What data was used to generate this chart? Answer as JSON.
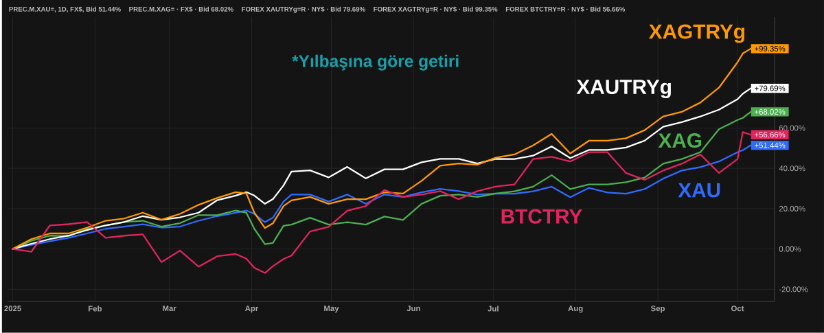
{
  "chart_data": {
    "type": "line",
    "title": "*Yılbaşına göre getiri",
    "annotations": [
      "PREC.M.XAU=, 1D, FX$, Bid 51.44%",
      "PREC.M.XAG= · FX$ · Bid 68.02%",
      "FOREX XAUTRYg=R · NY$ · Bid 79.69%",
      "FOREX XAGTRYg=R · NY$ · Bid 99.35%",
      "FOREX BTCTRY=R · NY$ · Bid 56.66%"
    ],
    "x": [
      "2025-01-01",
      "2025-01-08",
      "2025-01-15",
      "2025-01-22",
      "2025-01-29",
      "2025-02-05",
      "2025-02-12",
      "2025-02-19",
      "2025-02-26",
      "2025-03-05",
      "2025-03-12",
      "2025-03-19",
      "2025-03-26",
      "2025-03-30",
      "2025-04-02",
      "2025-04-06",
      "2025-04-09",
      "2025-04-13",
      "2025-04-16",
      "2025-04-23",
      "2025-04-30",
      "2025-05-07",
      "2025-05-14",
      "2025-05-21",
      "2025-05-28",
      "2025-06-04",
      "2025-06-11",
      "2025-06-18",
      "2025-06-25",
      "2025-07-02",
      "2025-07-09",
      "2025-07-16",
      "2025-07-23",
      "2025-07-30",
      "2025-08-06",
      "2025-08-13",
      "2025-08-20",
      "2025-08-27",
      "2025-09-03",
      "2025-09-10",
      "2025-09-17",
      "2025-09-24",
      "2025-10-01",
      "2025-10-03",
      "2025-10-06"
    ],
    "series": [
      {
        "name": "XAU",
        "color": "#2f6bff",
        "values": [
          0,
          2,
          3.8,
          5.5,
          7.7,
          10,
          11.1,
          12.3,
          10.6,
          11.1,
          14,
          16.3,
          18,
          19.1,
          17.4,
          13.3,
          15.5,
          23.5,
          27,
          27,
          23.5,
          27,
          22.4,
          27,
          25.8,
          28.1,
          29.8,
          28.7,
          27,
          27.5,
          27.4,
          28.6,
          30.9,
          25.7,
          30.3,
          28,
          27.4,
          29.7,
          34.9,
          38.9,
          40.6,
          43.4,
          48,
          49,
          51.44
        ],
        "value_labels": [
          null,
          null,
          null,
          null,
          null,
          null,
          null,
          null,
          null,
          null,
          null,
          null,
          null,
          null,
          null,
          null,
          null,
          null,
          null,
          null,
          null,
          null,
          null,
          null,
          null,
          null,
          null,
          null,
          null,
          null,
          null,
          null,
          null,
          null,
          null,
          null,
          null,
          null,
          null,
          null,
          null,
          null,
          null,
          null,
          "+51.44%"
        ]
      },
      {
        "name": "XAG",
        "color": "#4caf50",
        "values": [
          0,
          4.1,
          6.6,
          6.4,
          10,
          11.7,
          13.4,
          14,
          11.1,
          12.8,
          16.8,
          16.8,
          19.1,
          18,
          10,
          2.4,
          3,
          11.5,
          12.1,
          15.5,
          12.1,
          13.3,
          12.1,
          16.1,
          14.4,
          22.4,
          26.4,
          27,
          25.8,
          27.5,
          28.6,
          30.9,
          36.6,
          29.7,
          32,
          32,
          33.1,
          35.4,
          42.3,
          44.6,
          48,
          59.4,
          64,
          65,
          68.02
        ],
        "value_labels": [
          null,
          null,
          null,
          null,
          null,
          null,
          null,
          null,
          null,
          null,
          null,
          null,
          null,
          null,
          null,
          null,
          null,
          null,
          null,
          null,
          null,
          null,
          null,
          null,
          null,
          null,
          null,
          null,
          null,
          null,
          null,
          null,
          null,
          null,
          null,
          null,
          null,
          null,
          null,
          null,
          null,
          null,
          null,
          null,
          "+68.02%"
        ]
      },
      {
        "name": "XAUTRYg",
        "color": "#ffffff",
        "values": [
          0,
          2.6,
          4.9,
          6.6,
          9.4,
          11.7,
          13.4,
          16.3,
          14.5,
          15.7,
          18,
          24.2,
          26.5,
          28.2,
          26.5,
          22.4,
          24.7,
          31.5,
          38.4,
          39,
          35.5,
          40.7,
          35,
          39.5,
          39.5,
          43,
          44.7,
          44.7,
          42.4,
          44.7,
          44.6,
          46.3,
          50.9,
          45.1,
          49.1,
          49.1,
          50.3,
          53.7,
          60.6,
          62.9,
          65.7,
          69.1,
          74.3,
          77,
          79.69
        ],
        "value_labels": [
          null,
          null,
          null,
          null,
          null,
          null,
          null,
          null,
          null,
          null,
          null,
          null,
          null,
          null,
          null,
          null,
          null,
          null,
          null,
          null,
          null,
          null,
          null,
          null,
          null,
          null,
          null,
          null,
          null,
          null,
          null,
          null,
          null,
          null,
          null,
          null,
          null,
          null,
          null,
          null,
          null,
          null,
          null,
          null,
          "+79.69%"
        ]
      },
      {
        "name": "XAGTRYg",
        "color": "#ff9900",
        "values": [
          0,
          4.9,
          7.7,
          7.7,
          10.6,
          14,
          15.1,
          18,
          14.5,
          17.4,
          21.9,
          25.3,
          28.2,
          27.6,
          18,
          10.4,
          12.7,
          21.3,
          24.1,
          25.8,
          22.4,
          24.7,
          24.7,
          28.1,
          27.5,
          33.8,
          41.3,
          42.4,
          41.8,
          45.3,
          46.9,
          51.4,
          57.1,
          47.4,
          53.7,
          53.7,
          54.9,
          58.9,
          65.7,
          68,
          72.6,
          80,
          92.6,
          97,
          99.35
        ],
        "value_labels": [
          null,
          null,
          null,
          null,
          null,
          null,
          null,
          null,
          null,
          null,
          null,
          null,
          null,
          null,
          null,
          null,
          null,
          null,
          null,
          null,
          null,
          null,
          null,
          null,
          null,
          null,
          null,
          null,
          null,
          null,
          null,
          null,
          null,
          null,
          null,
          null,
          null,
          null,
          null,
          null,
          null,
          null,
          null,
          null,
          "+99.35%"
        ]
      },
      {
        "name": "BTCTRY",
        "color": "#e0245e",
        "values": [
          0,
          -1.4,
          11.7,
          12.3,
          13.4,
          5.5,
          6.6,
          7.2,
          -6.5,
          -0.8,
          -8.8,
          -3.6,
          -2.5,
          -4.8,
          -9.3,
          -11.9,
          -8.5,
          -5,
          -3.3,
          8.7,
          11,
          19,
          21.3,
          29.3,
          25.8,
          27,
          28.7,
          24.7,
          28.7,
          31,
          32,
          44.6,
          45.7,
          43.4,
          48,
          48,
          37.7,
          34.3,
          38.9,
          42.3,
          46.9,
          37.7,
          44.6,
          58,
          56.66
        ],
        "value_labels": [
          null,
          null,
          null,
          null,
          null,
          null,
          null,
          null,
          null,
          null,
          null,
          null,
          null,
          null,
          null,
          null,
          null,
          null,
          null,
          null,
          null,
          null,
          null,
          null,
          null,
          null,
          null,
          null,
          null,
          null,
          null,
          null,
          null,
          null,
          null,
          null,
          null,
          null,
          null,
          null,
          null,
          null,
          null,
          null,
          "+56.66%"
        ]
      }
    ],
    "xlim": [
      "2024-12-30",
      "2025-10-15"
    ],
    "xticks": [
      {
        "value": "2025-01-01",
        "label": "2025"
      },
      {
        "value": "2025-02-01",
        "label": "Feb"
      },
      {
        "value": "2025-03-01",
        "label": "Mar"
      },
      {
        "value": "2025-04-01",
        "label": "Apr"
      },
      {
        "value": "2025-05-01",
        "label": "May"
      },
      {
        "value": "2025-06-01",
        "label": "Jun"
      },
      {
        "value": "2025-07-01",
        "label": "Jul"
      },
      {
        "value": "2025-08-01",
        "label": "Aug"
      },
      {
        "value": "2025-09-01",
        "label": "Sep"
      },
      {
        "value": "2025-10-01",
        "label": "Oct"
      }
    ],
    "ylim": [
      -26,
      115
    ],
    "yticks": [
      {
        "value": -20,
        "label": "-20.00%"
      },
      {
        "value": 0,
        "label": "0.00%"
      },
      {
        "value": 20,
        "label": "20.00%"
      },
      {
        "value": 40,
        "label": "40.00%"
      },
      {
        "value": 60,
        "label": "60.00%"
      }
    ],
    "grid": true,
    "marker": "none",
    "line_style": "solid"
  }
}
